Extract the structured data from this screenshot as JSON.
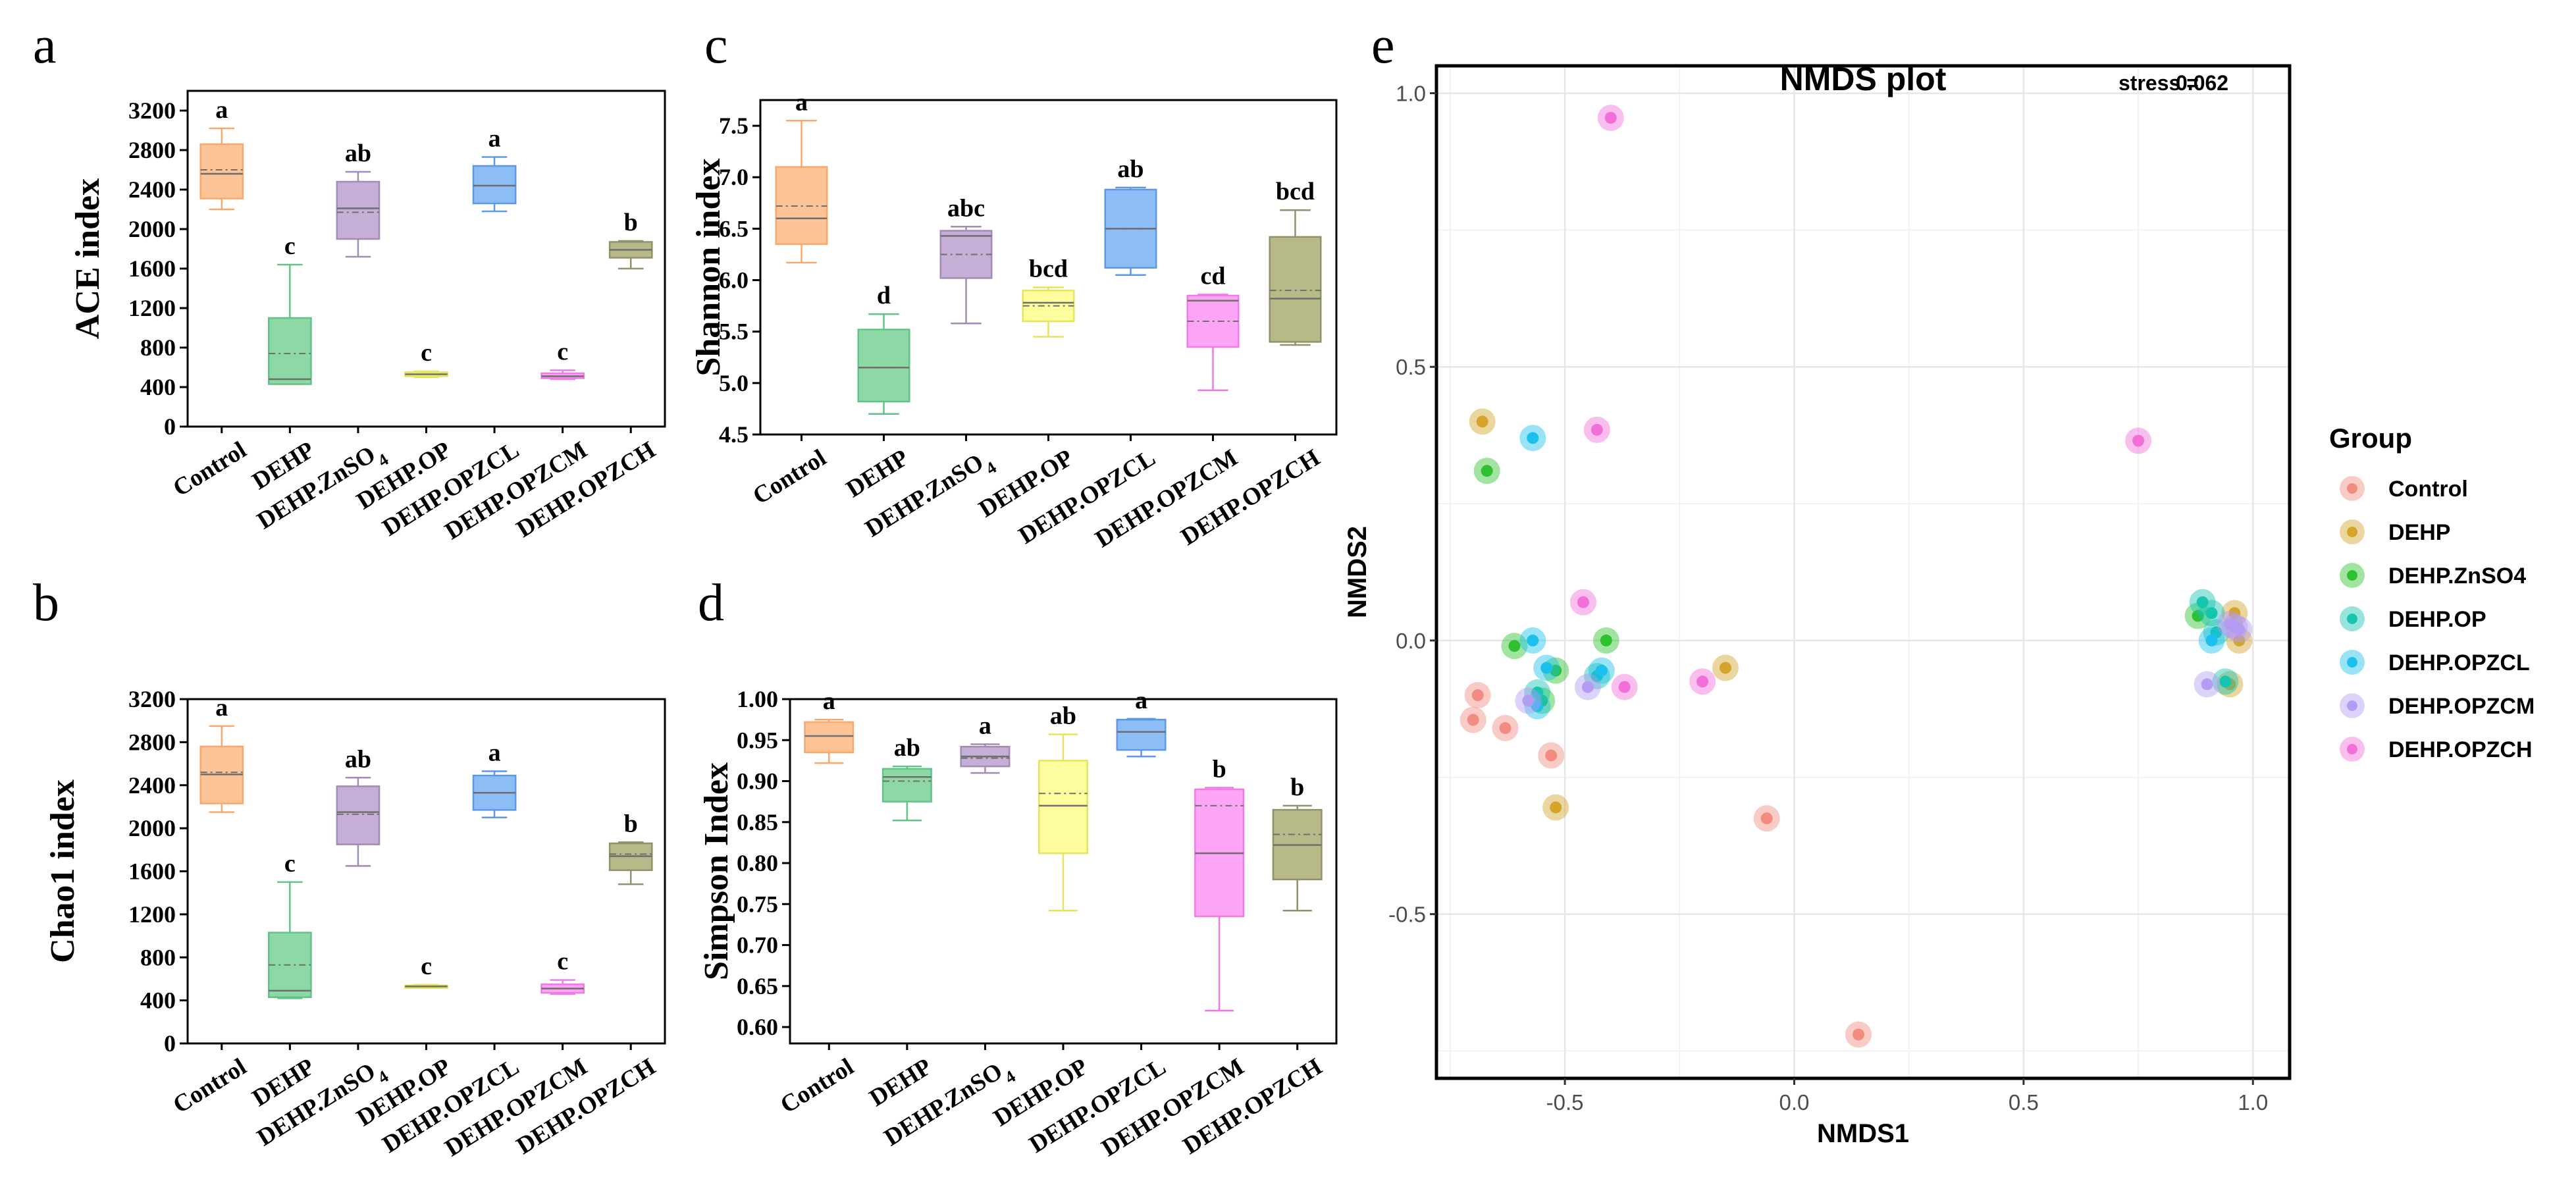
{
  "groups": [
    "Control",
    "DEHP",
    "DEHP.ZnSO4",
    "DEHP.OP",
    "DEHP.OPZCL",
    "DEHP.OPZCM",
    "DEHP.OPZCH"
  ],
  "box_colors": {
    "fill": [
      "#fcc396",
      "#8dd9a6",
      "#c6afd6",
      "#fdfd9d",
      "#8dbdf5",
      "#fca5f4",
      "#b8b988"
    ],
    "stroke": [
      "#f7a96d",
      "#62c388",
      "#a48ab8",
      "#e6e35c",
      "#5d97e6",
      "#f27ae8",
      "#90926a"
    ]
  },
  "nmds_colors": [
    "#f28c80",
    "#d4a52a",
    "#2ec02e",
    "#17c4b0",
    "#1cc0ec",
    "#b49cf2",
    "#f26fd8"
  ],
  "chart_data": [
    {
      "panel": "a",
      "type": "box",
      "title": "",
      "ylabel": "ACE index",
      "categories": [
        "Control",
        "DEHP",
        "DEHP.ZnSO4",
        "DEHP.OP",
        "DEHP.OPZCL",
        "DEHP.OPZCM",
        "DEHP.OPZCH"
      ],
      "ylim": [
        0,
        3400
      ],
      "yticks": [
        0,
        400,
        800,
        1200,
        1600,
        2000,
        2400,
        2800,
        3200
      ],
      "tick_labels": [
        "0",
        "400",
        "800",
        "1200",
        "1600",
        "2000",
        "2400",
        "2800",
        "3200"
      ],
      "boxes": [
        {
          "min": 2200,
          "q1": 2310,
          "median": 2560,
          "mean": 2600,
          "q3": 2860,
          "max": 3020
        },
        {
          "min": 430,
          "q1": 430,
          "median": 480,
          "mean": 740,
          "q3": 1100,
          "max": 1640
        },
        {
          "min": 1720,
          "q1": 1900,
          "median": 2210,
          "mean": 2170,
          "q3": 2480,
          "max": 2580
        },
        {
          "min": 500,
          "q1": 510,
          "median": 530,
          "mean": 530,
          "q3": 550,
          "max": 560
        },
        {
          "min": 2180,
          "q1": 2260,
          "median": 2440,
          "mean": 2440,
          "q3": 2640,
          "max": 2730
        },
        {
          "min": 480,
          "q1": 490,
          "median": 510,
          "mean": 510,
          "q3": 540,
          "max": 570
        },
        {
          "min": 1600,
          "q1": 1710,
          "median": 1790,
          "mean": 1790,
          "q3": 1870,
          "max": 1880
        }
      ],
      "letters": [
        "a",
        "c",
        "ab",
        "c",
        "a",
        "c",
        "b"
      ]
    },
    {
      "panel": "b",
      "type": "box",
      "title": "",
      "ylabel": "Chao1 index",
      "categories": [
        "Control",
        "DEHP",
        "DEHP.ZnSO4",
        "DEHP.OP",
        "DEHP.OPZCL",
        "DEHP.OPZCM",
        "DEHP.OPZCH"
      ],
      "ylim": [
        0,
        3200
      ],
      "yticks": [
        0,
        400,
        800,
        1200,
        1600,
        2000,
        2400,
        2800,
        3200
      ],
      "tick_labels": [
        "0",
        "400",
        "800",
        "1200",
        "1600",
        "2000",
        "2400",
        "2800",
        "3200"
      ],
      "boxes": [
        {
          "min": 2150,
          "q1": 2230,
          "median": 2500,
          "mean": 2520,
          "q3": 2760,
          "max": 2950
        },
        {
          "min": 420,
          "q1": 430,
          "median": 490,
          "mean": 730,
          "q3": 1030,
          "max": 1500
        },
        {
          "min": 1650,
          "q1": 1850,
          "median": 2150,
          "mean": 2130,
          "q3": 2390,
          "max": 2470
        },
        {
          "min": 520,
          "q1": 525,
          "median": 530,
          "mean": 530,
          "q3": 540,
          "max": 545
        },
        {
          "min": 2100,
          "q1": 2170,
          "median": 2330,
          "mean": 2330,
          "q3": 2490,
          "max": 2530
        },
        {
          "min": 460,
          "q1": 470,
          "median": 510,
          "mean": 510,
          "q3": 550,
          "max": 590
        },
        {
          "min": 1480,
          "q1": 1610,
          "median": 1740,
          "mean": 1760,
          "q3": 1860,
          "max": 1870
        }
      ],
      "letters": [
        "a",
        "c",
        "ab",
        "c",
        "a",
        "c",
        "b"
      ]
    },
    {
      "panel": "c",
      "type": "box",
      "title": "",
      "ylabel": "Shannon index",
      "categories": [
        "Control",
        "DEHP",
        "DEHP.ZnSO4",
        "DEHP.OP",
        "DEHP.OPZCL",
        "DEHP.OPZCM",
        "DEHP.OPZCH"
      ],
      "ylim": [
        4.5,
        7.75
      ],
      "yticks": [
        4.5,
        5.0,
        5.5,
        6.0,
        6.5,
        7.0,
        7.5
      ],
      "tick_labels": [
        "4.5",
        "5.0",
        "5.5",
        "6.0",
        "6.5",
        "7.0",
        "7.5"
      ],
      "boxes": [
        {
          "min": 6.17,
          "q1": 6.35,
          "median": 6.6,
          "mean": 6.72,
          "q3": 7.1,
          "max": 7.55
        },
        {
          "min": 4.7,
          "q1": 4.82,
          "median": 5.15,
          "mean": 5.15,
          "q3": 5.52,
          "max": 5.67
        },
        {
          "min": 5.58,
          "q1": 6.02,
          "median": 6.43,
          "mean": 6.25,
          "q3": 6.48,
          "max": 6.52
        },
        {
          "min": 5.45,
          "q1": 5.6,
          "median": 5.78,
          "mean": 5.75,
          "q3": 5.9,
          "max": 5.93
        },
        {
          "min": 6.05,
          "q1": 6.12,
          "median": 6.5,
          "mean": 6.5,
          "q3": 6.88,
          "max": 6.9
        },
        {
          "min": 4.93,
          "q1": 5.35,
          "median": 5.8,
          "mean": 5.6,
          "q3": 5.85,
          "max": 5.86
        },
        {
          "min": 5.37,
          "q1": 5.4,
          "median": 5.82,
          "mean": 5.9,
          "q3": 6.42,
          "max": 6.68
        }
      ],
      "letters": [
        "a",
        "d",
        "abc",
        "bcd",
        "ab",
        "cd",
        "bcd"
      ]
    },
    {
      "panel": "d",
      "type": "box",
      "title": "",
      "ylabel": "Simpson Index",
      "categories": [
        "Control",
        "DEHP",
        "DEHP.ZnSO4",
        "DEHP.OP",
        "DEHP.OPZCL",
        "DEHP.OPZCM",
        "DEHP.OPZCH"
      ],
      "ylim": [
        0.58,
        1.0
      ],
      "yticks": [
        0.6,
        0.65,
        0.7,
        0.75,
        0.8,
        0.85,
        0.9,
        0.95,
        1.0
      ],
      "tick_labels": [
        "0.60",
        "0.65",
        "0.70",
        "0.75",
        "0.80",
        "0.85",
        "0.90",
        "0.95",
        "1.00"
      ],
      "boxes": [
        {
          "min": 0.922,
          "q1": 0.935,
          "median": 0.955,
          "mean": 0.955,
          "q3": 0.972,
          "max": 0.975
        },
        {
          "min": 0.852,
          "q1": 0.875,
          "median": 0.905,
          "mean": 0.9,
          "q3": 0.915,
          "max": 0.918
        },
        {
          "min": 0.91,
          "q1": 0.918,
          "median": 0.93,
          "mean": 0.928,
          "q3": 0.942,
          "max": 0.945
        },
        {
          "min": 0.742,
          "q1": 0.812,
          "median": 0.87,
          "mean": 0.885,
          "q3": 0.925,
          "max": 0.957
        },
        {
          "min": 0.93,
          "q1": 0.938,
          "median": 0.96,
          "mean": 0.96,
          "q3": 0.975,
          "max": 0.976
        },
        {
          "min": 0.62,
          "q1": 0.735,
          "median": 0.812,
          "mean": 0.87,
          "q3": 0.89,
          "max": 0.892
        },
        {
          "min": 0.742,
          "q1": 0.78,
          "median": 0.822,
          "mean": 0.835,
          "q3": 0.865,
          "max": 0.87
        }
      ],
      "letters": [
        "a",
        "ab",
        "a",
        "ab",
        "a",
        "b",
        "b"
      ]
    },
    {
      "panel": "e",
      "type": "scatter",
      "title": "NMDS plot",
      "stress_label": "stress =",
      "stress_value": "0.062",
      "xlabel": "NMDS1",
      "ylabel": "NMDS2",
      "xlim": [
        -0.78,
        1.08
      ],
      "ylim": [
        -0.8,
        1.05
      ],
      "xticks": [
        -0.5,
        0.0,
        0.5,
        1.0
      ],
      "xtick_labels": [
        "-0.5",
        "0.0",
        "0.5",
        "1.0"
      ],
      "yticks": [
        -0.5,
        0.0,
        0.5,
        1.0
      ],
      "ytick_labels": [
        "-0.5",
        "0.0",
        "0.5",
        "1.0"
      ],
      "legend_title": "Group",
      "legend_position": "right",
      "series": [
        {
          "name": "Control",
          "points": [
            [
              -0.69,
              -0.1
            ],
            [
              -0.7,
              -0.145
            ],
            [
              -0.63,
              -0.16
            ],
            [
              -0.53,
              -0.21
            ],
            [
              -0.06,
              -0.325
            ],
            [
              0.14,
              -0.72
            ]
          ]
        },
        {
          "name": "DEHP",
          "points": [
            [
              -0.68,
              0.4
            ],
            [
              -0.52,
              -0.305
            ],
            [
              -0.15,
              -0.05
            ],
            [
              0.96,
              0.05
            ],
            [
              0.97,
              0.0
            ],
            [
              0.95,
              -0.08
            ]
          ]
        },
        {
          "name": "DEHP.ZnSO4",
          "points": [
            [
              -0.67,
              0.31
            ],
            [
              -0.61,
              -0.01
            ],
            [
              -0.55,
              -0.11
            ],
            [
              -0.52,
              -0.055
            ],
            [
              -0.41,
              0.0
            ],
            [
              0.88,
              0.045
            ]
          ]
        },
        {
          "name": "DEHP.OP",
          "points": [
            [
              -0.56,
              -0.095
            ],
            [
              -0.43,
              -0.065
            ],
            [
              0.89,
              0.07
            ],
            [
              0.91,
              0.05
            ],
            [
              0.92,
              0.015
            ],
            [
              0.94,
              -0.075
            ]
          ]
        },
        {
          "name": "DEHP.OPZCL",
          "points": [
            [
              -0.57,
              0.37
            ],
            [
              -0.57,
              0.0
            ],
            [
              -0.54,
              -0.05
            ],
            [
              -0.42,
              -0.055
            ],
            [
              -0.56,
              -0.12
            ],
            [
              0.91,
              0.0
            ]
          ]
        },
        {
          "name": "DEHP.OPZCM",
          "points": [
            [
              -0.58,
              -0.11
            ],
            [
              -0.45,
              -0.085
            ],
            [
              0.9,
              -0.08
            ],
            [
              0.96,
              0.025
            ],
            [
              0.97,
              0.02
            ],
            [
              0.95,
              0.03
            ]
          ]
        },
        {
          "name": "DEHP.OPZCH",
          "points": [
            [
              -0.4,
              0.955
            ],
            [
              -0.43,
              0.385
            ],
            [
              -0.46,
              0.07
            ],
            [
              -0.37,
              -0.085
            ],
            [
              -0.2,
              -0.075
            ],
            [
              0.75,
              0.365
            ]
          ]
        }
      ]
    }
  ]
}
